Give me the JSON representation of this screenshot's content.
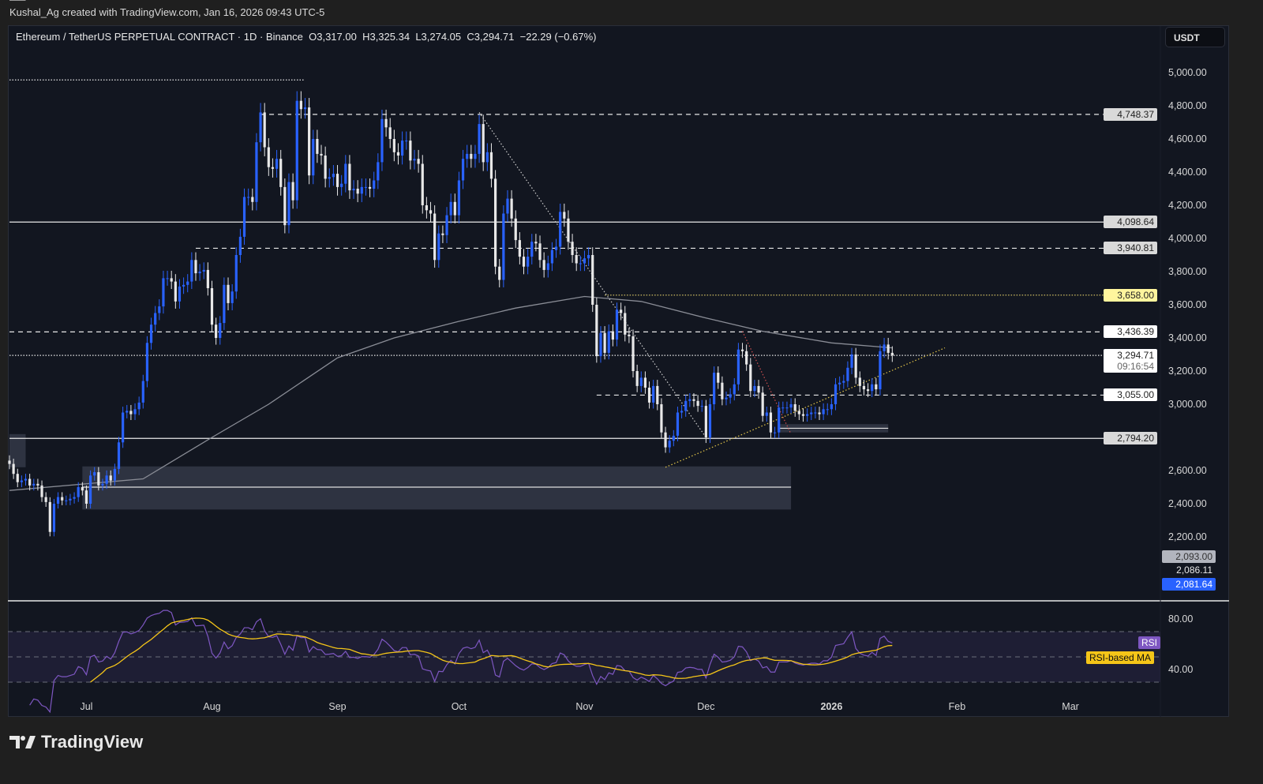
{
  "credit": "Kushal_Ag created with TradingView.com, Jan 16, 2026 09:43 UTC-5",
  "legend": {
    "symbol": "Ethereum / TetherUS PERPETUAL CONTRACT · 1D · Binance",
    "open": "O3,317.00",
    "high": "H3,325.34",
    "low": "L3,274.05",
    "close": "C3,294.71",
    "change": "−22.29 (−0.67%)"
  },
  "currency_button": "USDT",
  "logo_text": "TradingView",
  "colors": {
    "up": "#2962ff",
    "down": "#e8e8e8",
    "ma": "#8a8d96",
    "rsi": "#7e57c2",
    "rsi_ma": "#f5c518",
    "background": "#121620"
  },
  "chart_data": [
    {
      "type": "candlestick",
      "start_date": "2025-06-12",
      "ylim": [
        2000,
        5100
      ],
      "price_ticks": [
        "5,000.00",
        "4,800.00",
        "4,600.00",
        "4,400.00",
        "4,200.00",
        "4,000.00",
        "3,800.00",
        "3,600.00",
        "3,400.00",
        "3,200.00",
        "3,000.00",
        "2,600.00",
        "2,400.00",
        "2,200.00"
      ],
      "price_tick_values": [
        5000,
        4800,
        4600,
        4400,
        4200,
        4000,
        3800,
        3600,
        3400,
        3200,
        3000,
        2600,
        2400,
        2200
      ],
      "time_ticks": [
        {
          "label": "Jul",
          "date": "2025-07-01"
        },
        {
          "label": "Aug",
          "date": "2025-08-01"
        },
        {
          "label": "Sep",
          "date": "2025-09-01"
        },
        {
          "label": "Oct",
          "date": "2025-10-01"
        },
        {
          "label": "Nov",
          "date": "2025-11-01"
        },
        {
          "label": "Dec",
          "date": "2025-12-01"
        },
        {
          "label": "2026",
          "date": "2026-01-01"
        },
        {
          "label": "Feb",
          "date": "2026-02-01"
        },
        {
          "label": "Mar",
          "date": "2026-03-01"
        }
      ],
      "closes": [
        2640,
        2580,
        2530,
        2540,
        2550,
        2510,
        2520,
        2510,
        2440,
        2410,
        2230,
        2400,
        2440,
        2420,
        2420,
        2430,
        2440,
        2500,
        2480,
        2400,
        2570,
        2590,
        2510,
        2520,
        2570,
        2540,
        2610,
        2770,
        2950,
        2960,
        2940,
        2970,
        3010,
        3140,
        3370,
        3480,
        3550,
        3590,
        3760,
        3760,
        3740,
        3620,
        3710,
        3720,
        3740,
        3870,
        3790,
        3800,
        3810,
        3700,
        3480,
        3400,
        3490,
        3720,
        3610,
        3680,
        3900,
        4010,
        4250,
        4250,
        4220,
        4580,
        4760,
        4550,
        4430,
        4420,
        4480,
        4310,
        4080,
        4340,
        4230,
        4830,
        4780,
        4790,
        4380,
        4600,
        4510,
        4500,
        4360,
        4370,
        4390,
        4310,
        4330,
        4450,
        4290,
        4300,
        4270,
        4310,
        4310,
        4300,
        4350,
        4460,
        4720,
        4670,
        4600,
        4520,
        4500,
        4590,
        4590,
        4470,
        4480,
        4450,
        4200,
        4170,
        4150,
        3870,
        4030,
        4020,
        4140,
        4220,
        4140,
        4350,
        4480,
        4510,
        4480,
        4510,
        4690,
        4460,
        4520,
        4360,
        3830,
        3750,
        4150,
        4240,
        4120,
        3990,
        3890,
        3830,
        3890,
        3980,
        3970,
        3870,
        3810,
        3850,
        3930,
        3950,
        4160,
        4120,
        3980,
        3900,
        3850,
        3850,
        3880,
        3900,
        3600,
        3290,
        3430,
        3310,
        3440,
        3390,
        3570,
        3550,
        3420,
        3410,
        3200,
        3110,
        3160,
        3100,
        3010,
        3110,
        3000,
        2830,
        2740,
        2780,
        2810,
        2950,
        2960,
        3020,
        3030,
        3020,
        2990,
        2990,
        2800,
        3000,
        3190,
        3130,
        3030,
        3040,
        3060,
        3120,
        3330,
        3320,
        3240,
        3080,
        3110,
        3070,
        2930,
        2950,
        2830,
        2830,
        2980,
        2980,
        2980,
        3000,
        2960,
        2940,
        2930,
        2940,
        2950,
        2950,
        2940,
        2970,
        2970,
        3000,
        3120,
        3130,
        3140,
        3220,
        3300,
        3160,
        3110,
        3090,
        3080,
        3120,
        3090,
        3320,
        3360,
        3310,
        3294.71
      ],
      "moving_average": [
        [
          "2025-06-12",
          2480
        ],
        [
          "2025-07-15",
          2550
        ],
        [
          "2025-08-01",
          2800
        ],
        [
          "2025-08-15",
          3000
        ],
        [
          "2025-09-01",
          3280
        ],
        [
          "2025-09-15",
          3400
        ],
        [
          "2025-10-01",
          3500
        ],
        [
          "2025-10-15",
          3580
        ],
        [
          "2025-11-01",
          3650
        ],
        [
          "2025-11-15",
          3620
        ],
        [
          "2025-12-01",
          3520
        ],
        [
          "2025-12-15",
          3440
        ],
        [
          "2026-01-01",
          3370
        ],
        [
          "2026-01-16",
          3340
        ]
      ],
      "levels": [
        {
          "price": 4956,
          "style": "dotted",
          "from": "2025-06-12",
          "to": "2025-08-24"
        },
        {
          "price": 4748.37,
          "label": "4,748.37",
          "style": "dashed",
          "from": "2025-08-13",
          "tag": "#d9d9d9"
        },
        {
          "price": 4098.64,
          "label": "4,098.64",
          "style": "solid",
          "from": "2025-06-12",
          "tag": "#d9d9d9"
        },
        {
          "price": 3940.81,
          "label": "3,940.81",
          "style": "dashed",
          "from": "2025-07-28",
          "tag": "#d9d9d9"
        },
        {
          "price": 3658.0,
          "label": "3,658.00",
          "style": "dotted",
          "from": "2025-11-06",
          "tag": "#fff59d"
        },
        {
          "price": 3436.39,
          "label": "3,436.39",
          "style": "dashed",
          "from": "2025-06-12",
          "tag": "#ffffff"
        },
        {
          "price": 3294.71,
          "label": "3,294.71",
          "sub": "09:16:54",
          "style": "dotted",
          "from": "2025-06-12",
          "tag": "#ffffff"
        },
        {
          "price": 3055.0,
          "label": "3,055.00",
          "style": "dashed",
          "from": "2025-11-04",
          "tag": "#ffffff"
        },
        {
          "price": 2794.2,
          "label": "2,794.20",
          "style": "solid",
          "from": "2025-06-12",
          "tag": "#d9d9d9"
        }
      ],
      "extra_axis_tags": [
        {
          "price": 2093.0,
          "label": "2,093.00",
          "bg": "#b2b5be",
          "fg": "#333"
        },
        {
          "price": 2086.11,
          "label": "2,086.11",
          "bg": "none",
          "fg": "#e8e8e8"
        },
        {
          "price": 2081.64,
          "label": "2,081.64",
          "bg": "#2962ff",
          "fg": "#ffffff"
        }
      ],
      "zones": [
        {
          "from": "2025-06-30",
          "to": "2025-12-22",
          "top": 2625,
          "bottom": 2365,
          "mid": 2500
        },
        {
          "from": "2025-12-19",
          "to": "2026-01-15",
          "top": 2880,
          "bottom": 2830,
          "mid": 2855
        },
        {
          "from": "2025-06-12",
          "to": "2025-06-16",
          "top": 2820,
          "bottom": 2620
        }
      ],
      "trendlines": [
        {
          "from": [
            "2025-10-06",
            4760
          ],
          "to": [
            "2025-12-01",
            2800
          ],
          "color": "#d0d0d0"
        },
        {
          "from": [
            "2025-11-21",
            2620
          ],
          "to": [
            "2026-01-29",
            3340
          ],
          "color": "#e6c84a"
        },
        {
          "from": [
            "2025-12-10",
            3440
          ],
          "to": [
            "2025-12-22",
            2820
          ],
          "color": "#d05050"
        }
      ]
    },
    {
      "type": "line",
      "indicator": "RSI",
      "ticks": [
        "80.00",
        "40.00"
      ],
      "tick_values": [
        80,
        40
      ],
      "bands": [
        70,
        50,
        30
      ],
      "series": [
        {
          "name": "RSI"
        },
        {
          "name": "RSI-based MA"
        }
      ]
    }
  ]
}
